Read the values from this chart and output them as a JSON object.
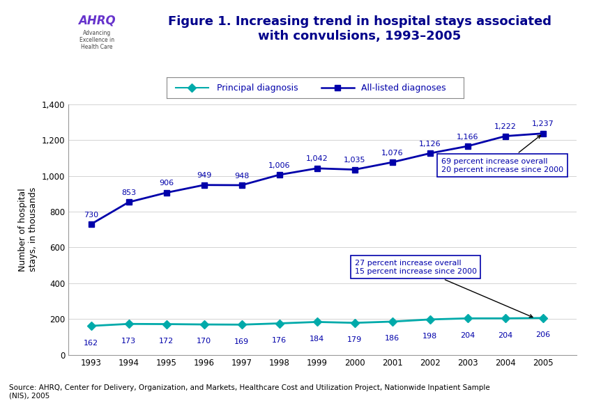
{
  "years": [
    1993,
    1994,
    1995,
    1996,
    1997,
    1998,
    1999,
    2000,
    2001,
    2002,
    2003,
    2004,
    2005
  ],
  "all_listed": [
    730,
    853,
    906,
    949,
    948,
    1006,
    1042,
    1035,
    1076,
    1126,
    1166,
    1222,
    1237
  ],
  "principal": [
    162,
    173,
    172,
    170,
    169,
    176,
    184,
    179,
    186,
    198,
    204,
    204,
    206
  ],
  "all_listed_labels": [
    "730",
    "853",
    "906",
    "949",
    "948",
    "1,006",
    "1,042",
    "1,035",
    "1,076",
    "1,126",
    "1,166",
    "1,222",
    "1,237"
  ],
  "principal_labels": [
    "162",
    "173",
    "172",
    "170",
    "169",
    "176",
    "184",
    "179",
    "186",
    "198",
    "204",
    "204",
    "206"
  ],
  "all_listed_color": "#0000AA",
  "principal_color": "#00AAAA",
  "title_line1": "Figure 1. Increasing trend in hospital stays associated",
  "title_line2": "with convulsions, 1993–2005",
  "ylabel": "Number of hospital\nstays, in thousands",
  "ylim": [
    0,
    1400
  ],
  "yticks": [
    0,
    200,
    400,
    600,
    800,
    1000,
    1200,
    1400
  ],
  "ytick_labels": [
    "0",
    "200",
    "400",
    "600",
    "800",
    "1,000",
    "1,200",
    "1,400"
  ],
  "legend_label_principal": "Principal diagnosis",
  "legend_label_all": "All-listed diagnoses",
  "annotation_all_line1": "69 percent increase overall",
  "annotation_all_line2": "20 percent increase since 2000",
  "annotation_principal_line1": "27 percent increase overall",
  "annotation_principal_line2": "15 percent increase since 2000",
  "source_text": "Source: AHRQ, Center for Delivery, Organization, and Markets, Healthcare Cost and Utilization Project, Nationwide Inpatient Sample\n(NIS), 2005",
  "title_color": "#00008B",
  "background_color": "#FFFFFF",
  "header_bg": "#F0F0F0",
  "logo_blue_bg": "#1E90FF",
  "dark_blue_line": "#00008B",
  "grid_color": "#CCCCCC",
  "title_fontsize": 13,
  "axis_label_fontsize": 9,
  "tick_fontsize": 8.5,
  "data_label_fontsize": 8,
  "legend_fontsize": 9,
  "source_fontsize": 7.5
}
